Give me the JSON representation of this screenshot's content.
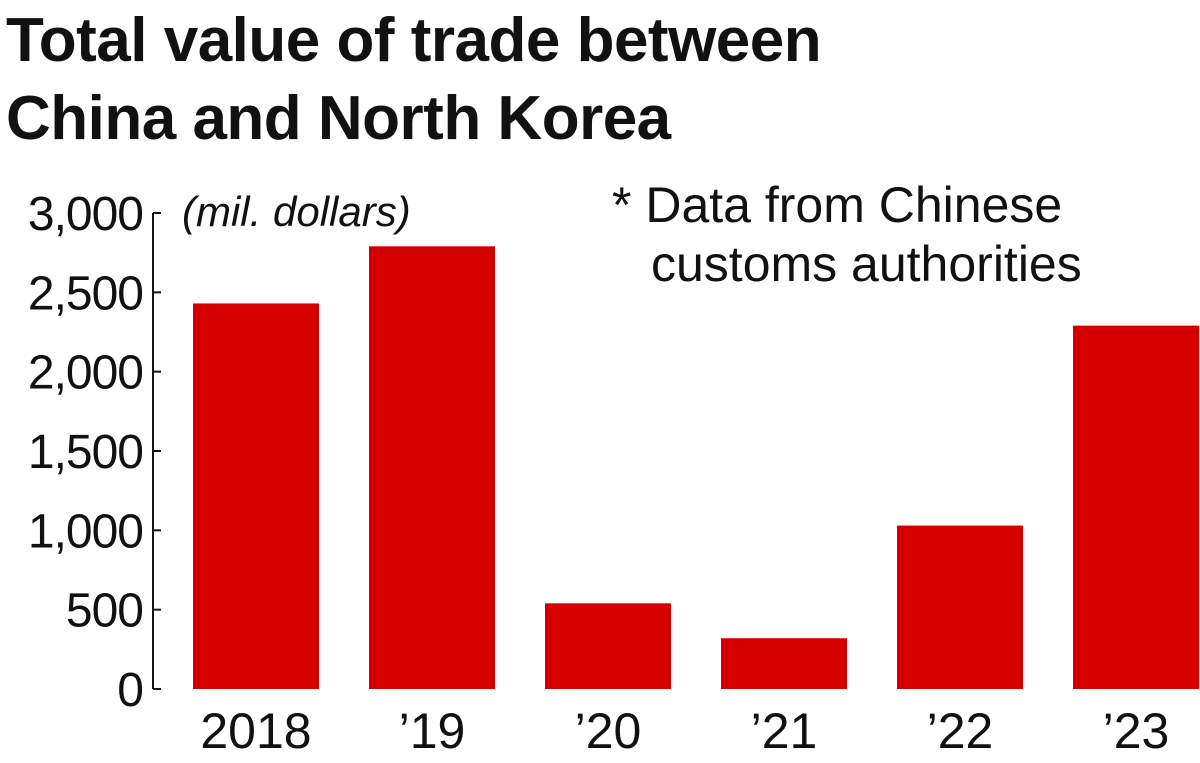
{
  "title_lines": [
    "Total value of trade between",
    "China and North Korea"
  ],
  "colors": {
    "bar": "#d40000",
    "text": "#111111",
    "axis": "#111111"
  },
  "chart_data": {
    "type": "bar",
    "title": "Total value of trade between China and North Korea",
    "unit_label": "(mil. dollars)",
    "note": [
      "* Data from Chinese",
      "customs authorities"
    ],
    "categories": [
      "2018",
      "’19",
      "’20",
      "’21",
      "’22",
      "’23"
    ],
    "values": [
      2430,
      2790,
      540,
      320,
      1030,
      2290
    ],
    "ylim": [
      0,
      3000
    ],
    "yticks": [
      0,
      500,
      1000,
      1500,
      2000,
      2500,
      3000
    ],
    "ytick_labels": [
      "0",
      "500",
      "1,000",
      "1,500",
      "2,000",
      "2,500",
      "3,000"
    ],
    "xlabel": "",
    "ylabel": "",
    "grid": false,
    "legend": "none"
  }
}
